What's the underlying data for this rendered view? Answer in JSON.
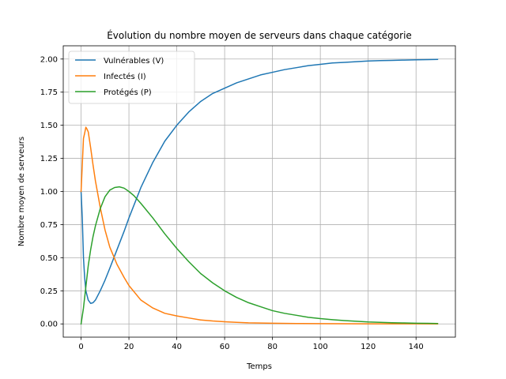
{
  "chart_data": {
    "type": "line",
    "title": "Évolution du nombre moyen de serveurs dans chaque catégorie",
    "xlabel": "Temps",
    "ylabel": "Nombre moyen de serveurs",
    "xlim": [
      -7.45,
      156.45
    ],
    "ylim": [
      -0.1,
      2.1
    ],
    "xticks": [
      0,
      20,
      40,
      60,
      80,
      100,
      120,
      140
    ],
    "yticks": [
      0.0,
      0.25,
      0.5,
      0.75,
      1.0,
      1.25,
      1.5,
      1.75,
      2.0
    ],
    "ytick_labels": [
      "0.00",
      "0.25",
      "0.50",
      "0.75",
      "1.00",
      "1.25",
      "1.50",
      "1.75",
      "2.00"
    ],
    "grid": true,
    "legend_position": "upper left",
    "series": [
      {
        "name": "Vulnérables (V)",
        "color": "#1f77b4",
        "x": [
          0,
          0.5,
          1,
          1.5,
          2,
          3,
          4,
          5,
          6,
          8,
          10,
          12,
          15,
          18,
          20,
          25,
          30,
          35,
          40,
          45,
          50,
          55,
          60,
          65,
          70,
          75,
          80,
          85,
          90,
          95,
          100,
          105,
          110,
          115,
          120,
          125,
          130,
          135,
          140,
          145,
          149
        ],
        "y": [
          1.0,
          0.8,
          0.5,
          0.35,
          0.25,
          0.18,
          0.155,
          0.16,
          0.18,
          0.25,
          0.33,
          0.42,
          0.56,
          0.7,
          0.8,
          1.03,
          1.22,
          1.38,
          1.5,
          1.6,
          1.68,
          1.74,
          1.78,
          1.82,
          1.85,
          1.88,
          1.9,
          1.92,
          1.935,
          1.95,
          1.96,
          1.97,
          1.975,
          1.98,
          1.985,
          1.988,
          1.99,
          1.992,
          1.994,
          1.996,
          1.997
        ]
      },
      {
        "name": "Infectés (I)",
        "color": "#ff7f0e",
        "x": [
          0,
          0.5,
          1,
          1.5,
          2,
          2.5,
          3,
          4,
          5,
          6,
          8,
          10,
          12,
          15,
          18,
          20,
          25,
          30,
          35,
          40,
          45,
          50,
          55,
          60,
          65,
          70,
          80,
          90,
          100,
          110,
          120,
          130,
          140,
          149
        ],
        "y": [
          1.0,
          1.2,
          1.4,
          1.44,
          1.485,
          1.47,
          1.45,
          1.33,
          1.2,
          1.08,
          0.88,
          0.71,
          0.58,
          0.45,
          0.35,
          0.29,
          0.18,
          0.12,
          0.08,
          0.06,
          0.045,
          0.03,
          0.022,
          0.016,
          0.012,
          0.008,
          0.005,
          0.003,
          0.002,
          0.001,
          0.0008,
          0.0005,
          0.0003,
          0.0002
        ]
      },
      {
        "name": "Protégés (P)",
        "color": "#2ca02c",
        "x": [
          0,
          1,
          2,
          3,
          4,
          5,
          6,
          8,
          10,
          12,
          14,
          16,
          18,
          20,
          22,
          25,
          30,
          35,
          40,
          45,
          50,
          55,
          60,
          65,
          70,
          75,
          80,
          85,
          90,
          95,
          100,
          105,
          110,
          115,
          120,
          125,
          130,
          135,
          140,
          145,
          149
        ],
        "y": [
          0.0,
          0.12,
          0.28,
          0.44,
          0.56,
          0.66,
          0.74,
          0.87,
          0.96,
          1.01,
          1.03,
          1.035,
          1.025,
          1.0,
          0.97,
          0.91,
          0.8,
          0.68,
          0.57,
          0.47,
          0.38,
          0.31,
          0.25,
          0.2,
          0.16,
          0.13,
          0.1,
          0.08,
          0.065,
          0.05,
          0.04,
          0.032,
          0.025,
          0.02,
          0.015,
          0.012,
          0.009,
          0.007,
          0.005,
          0.004,
          0.003
        ]
      }
    ]
  }
}
